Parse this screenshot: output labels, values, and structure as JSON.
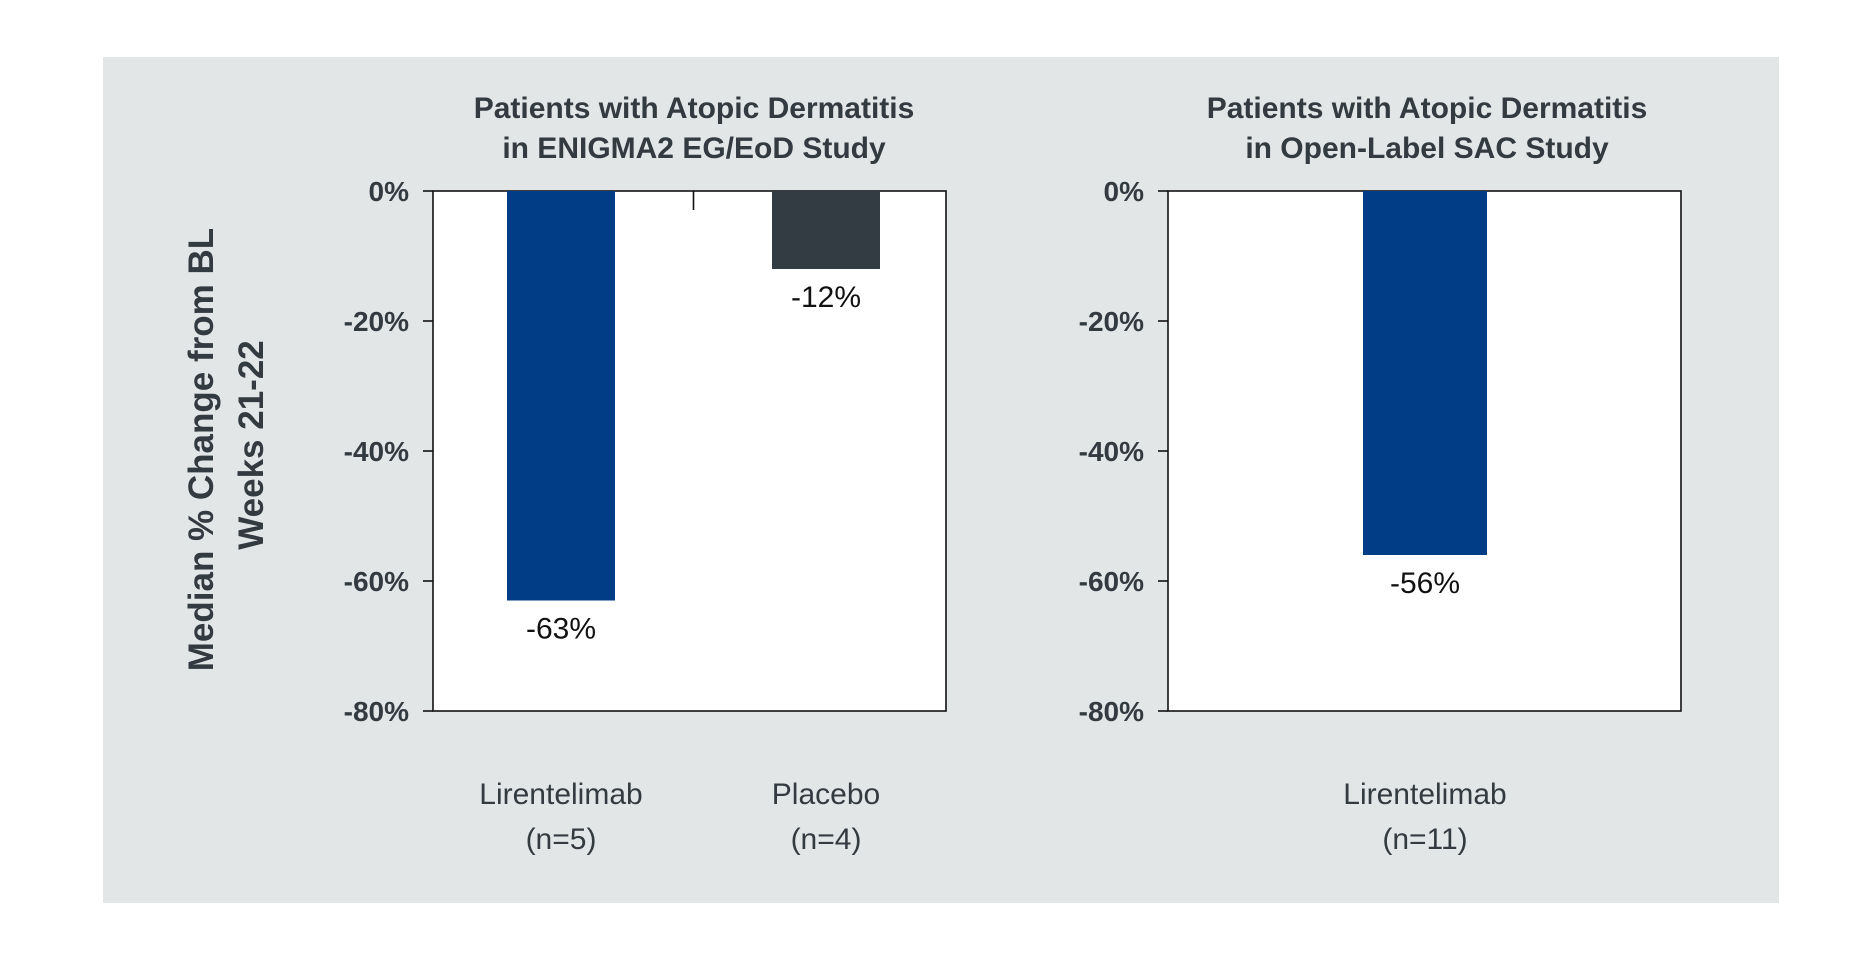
{
  "y_axis_label": [
    "Median % Change from BL",
    "Weeks 21-22"
  ],
  "colors": {
    "lirentelimab": "#003d87",
    "placebo": "#333c42",
    "background": "#e3e6e7",
    "plot": "#ffffff"
  },
  "chart_data": [
    {
      "type": "bar",
      "title": [
        "Patients with Atopic Dermatitis",
        "in ENIGMA2 EG/EoD Study"
      ],
      "ylim": [
        -80,
        0
      ],
      "yticks": [
        "0%",
        "-20%",
        "-40%",
        "-60%",
        "-80%"
      ],
      "categories": [
        {
          "label": "Lirentelimab",
          "n": "(n=5)"
        },
        {
          "label": "Placebo",
          "n": "(n=4)"
        }
      ],
      "values": [
        -63,
        -12
      ],
      "value_labels": [
        "-63%",
        "-12%"
      ],
      "bar_colors": [
        "#003d87",
        "#333c42"
      ]
    },
    {
      "type": "bar",
      "title": [
        "Patients with Atopic Dermatitis",
        "in Open-Label SAC Study"
      ],
      "ylim": [
        -80,
        0
      ],
      "yticks": [
        "0%",
        "-20%",
        "-40%",
        "-60%",
        "-80%"
      ],
      "categories": [
        {
          "label": "Lirentelimab",
          "n": "(n=11)"
        }
      ],
      "values": [
        -56
      ],
      "value_labels": [
        "-56%"
      ],
      "bar_colors": [
        "#003d87"
      ]
    }
  ]
}
